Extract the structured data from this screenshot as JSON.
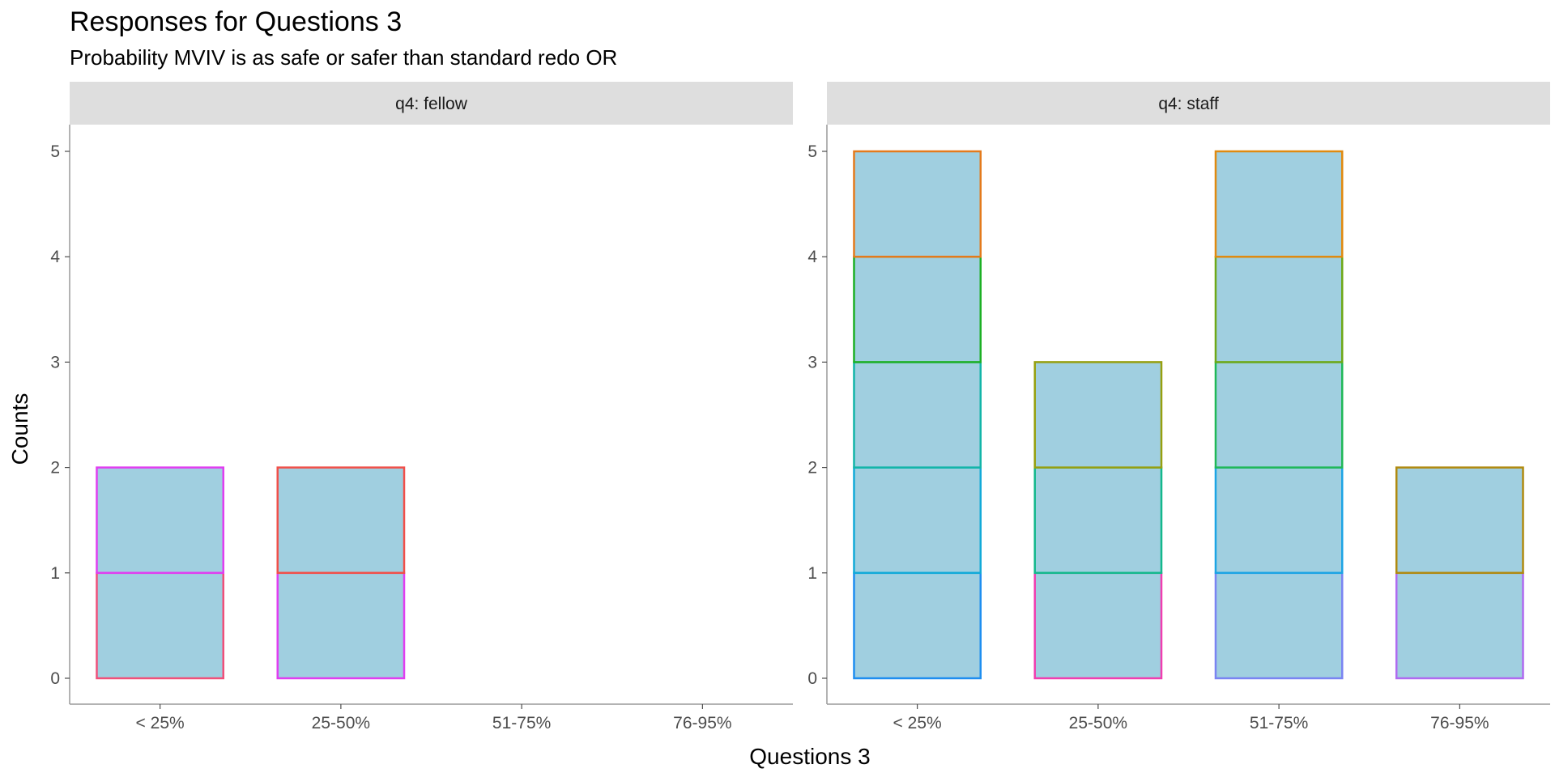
{
  "chart_data": {
    "type": "bar",
    "title": "Responses for Questions 3",
    "subtitle": "Probability MVIV is as safe or safer than standard redo OR",
    "xlabel": "Questions 3",
    "ylabel": "Counts",
    "categories": [
      "< 25%",
      "25-50%",
      "51-75%",
      "76-95%"
    ],
    "ylim": [
      0,
      5
    ],
    "yticks": [
      0,
      1,
      2,
      3,
      4,
      5
    ],
    "grid": false,
    "legend": "none",
    "stacked": true,
    "bar_fill": "#a0cfe0",
    "facets": [
      {
        "label": "q4: fellow",
        "bars": [
          {
            "category": "< 25%",
            "segments": [
              {
                "value": 1,
                "color": "#f0507a"
              },
              {
                "value": 1,
                "color": "#e03ef0"
              }
            ]
          },
          {
            "category": "25-50%",
            "segments": [
              {
                "value": 1,
                "color": "#e03ef0"
              },
              {
                "value": 1,
                "color": "#f0504a"
              }
            ]
          },
          {
            "category": "51-75%",
            "segments": []
          },
          {
            "category": "76-95%",
            "segments": []
          }
        ]
      },
      {
        "label": "q4: staff",
        "bars": [
          {
            "category": "< 25%",
            "segments": [
              {
                "value": 1,
                "color": "#1e8ef0"
              },
              {
                "value": 1,
                "color": "#12aad8"
              },
              {
                "value": 1,
                "color": "#12b5a8"
              },
              {
                "value": 1,
                "color": "#1cb024"
              },
              {
                "value": 1,
                "color": "#e47a1c"
              }
            ]
          },
          {
            "category": "25-50%",
            "segments": [
              {
                "value": 1,
                "color": "#f03eb0"
              },
              {
                "value": 1,
                "color": "#14b88c"
              },
              {
                "value": 1,
                "color": "#96a010"
              }
            ]
          },
          {
            "category": "51-75%",
            "segments": [
              {
                "value": 1,
                "color": "#7a84f2"
              },
              {
                "value": 1,
                "color": "#1ca4e4"
              },
              {
                "value": 1,
                "color": "#20b858"
              },
              {
                "value": 1,
                "color": "#6ea818"
              },
              {
                "value": 1,
                "color": "#e08a10"
              }
            ]
          },
          {
            "category": "76-95%",
            "segments": [
              {
                "value": 1,
                "color": "#b06af0"
              },
              {
                "value": 1,
                "color": "#b08a10"
              }
            ]
          }
        ]
      }
    ]
  }
}
